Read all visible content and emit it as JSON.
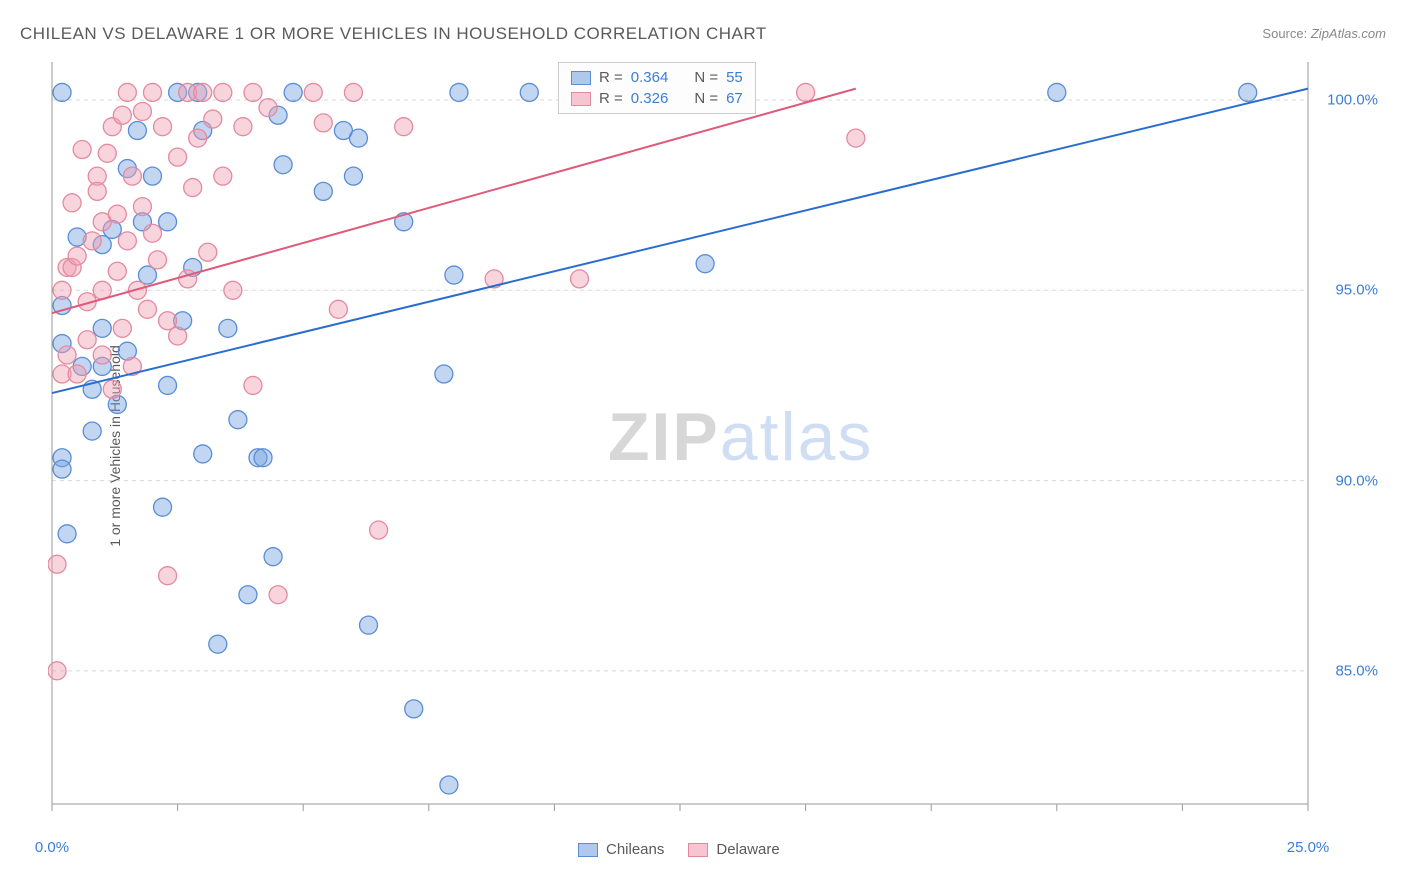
{
  "title": "CHILEAN VS DELAWARE 1 OR MORE VEHICLES IN HOUSEHOLD CORRELATION CHART",
  "source_label": "Source:",
  "source_value": "ZipAtlas.com",
  "y_axis_label": "1 or more Vehicles in Household",
  "watermark": {
    "part1": "ZIP",
    "part2": "atlas"
  },
  "chart": {
    "type": "scatter",
    "background_color": "#ffffff",
    "grid_color": "#d8d8d8",
    "axis_color": "#9a9a9a",
    "tick_color": "#3b7dd8",
    "xlim": [
      0,
      25
    ],
    "ylim": [
      81.5,
      101
    ],
    "x_ticks": [
      0,
      25
    ],
    "y_ticks": [
      85,
      90,
      95,
      100
    ],
    "x_tick_suffix": "%",
    "y_tick_suffix": "%",
    "x_minor_step": 2.5,
    "legend_top": {
      "rows": [
        {
          "swatch_fill": "#b0c8ec",
          "swatch_border": "#5a8dd6",
          "r_label": "R =",
          "r_value": "0.364",
          "n_label": "N =",
          "n_value": "55"
        },
        {
          "swatch_fill": "#f7c5cf",
          "swatch_border": "#e48aa0",
          "r_label": "R =",
          "r_value": "0.326",
          "n_label": "N =",
          "n_value": "67"
        }
      ]
    },
    "legend_bottom": [
      {
        "swatch_fill": "#b0c8ec",
        "swatch_border": "#5a8dd6",
        "label": "Chileans"
      },
      {
        "swatch_fill": "#f7c5cf",
        "swatch_border": "#e48aa0",
        "label": "Delaware"
      }
    ],
    "series": [
      {
        "name": "Chileans",
        "marker_fill": "rgba(120,165,225,0.45)",
        "marker_stroke": "#5a8dd6",
        "marker_r": 9,
        "trend_color": "#2a6dd0",
        "trend_width": 2,
        "trend": {
          "x1": 0,
          "y1": 92.3,
          "x2": 25,
          "y2": 100.3
        },
        "points": [
          [
            0.2,
            100.2
          ],
          [
            0.2,
            94.6
          ],
          [
            0.2,
            93.6
          ],
          [
            0.2,
            90.6
          ],
          [
            0.2,
            90.3
          ],
          [
            0.3,
            88.6
          ],
          [
            0.5,
            96.4
          ],
          [
            0.6,
            93.0
          ],
          [
            0.8,
            92.4
          ],
          [
            0.8,
            91.3
          ],
          [
            1.0,
            96.2
          ],
          [
            1.0,
            94.0
          ],
          [
            1.0,
            93.0
          ],
          [
            1.2,
            96.6
          ],
          [
            1.3,
            92.0
          ],
          [
            1.5,
            98.2
          ],
          [
            1.5,
            93.4
          ],
          [
            1.7,
            99.2
          ],
          [
            1.8,
            96.8
          ],
          [
            1.9,
            95.4
          ],
          [
            2.0,
            98.0
          ],
          [
            2.2,
            89.3
          ],
          [
            2.3,
            96.8
          ],
          [
            2.3,
            92.5
          ],
          [
            2.5,
            100.2
          ],
          [
            2.6,
            94.2
          ],
          [
            2.8,
            95.6
          ],
          [
            2.9,
            100.2
          ],
          [
            3.0,
            90.7
          ],
          [
            3.0,
            99.2
          ],
          [
            3.3,
            85.7
          ],
          [
            3.5,
            94.0
          ],
          [
            3.7,
            91.6
          ],
          [
            3.9,
            87.0
          ],
          [
            4.1,
            90.6
          ],
          [
            4.2,
            90.6
          ],
          [
            4.4,
            88.0
          ],
          [
            4.5,
            99.6
          ],
          [
            4.6,
            98.3
          ],
          [
            4.8,
            100.2
          ],
          [
            5.4,
            97.6
          ],
          [
            5.8,
            99.2
          ],
          [
            6.0,
            98.0
          ],
          [
            6.1,
            99.0
          ],
          [
            6.3,
            86.2
          ],
          [
            7.0,
            96.8
          ],
          [
            7.2,
            84.0
          ],
          [
            7.8,
            92.8
          ],
          [
            7.9,
            82.0
          ],
          [
            8.0,
            95.4
          ],
          [
            8.1,
            100.2
          ],
          [
            9.5,
            100.2
          ],
          [
            13.0,
            95.7
          ],
          [
            20.0,
            100.2
          ],
          [
            23.8,
            100.2
          ]
        ]
      },
      {
        "name": "Delaware",
        "marker_fill": "rgba(240,160,180,0.45)",
        "marker_stroke": "#e48aa0",
        "marker_r": 9,
        "trend_color": "#e05a7a",
        "trend_width": 2,
        "trend": {
          "x1": 0,
          "y1": 94.4,
          "x2": 16,
          "y2": 100.3
        },
        "points": [
          [
            0.1,
            85.0
          ],
          [
            0.1,
            87.8
          ],
          [
            0.2,
            92.8
          ],
          [
            0.2,
            95.0
          ],
          [
            0.3,
            93.3
          ],
          [
            0.3,
            95.6
          ],
          [
            0.4,
            95.6
          ],
          [
            0.4,
            97.3
          ],
          [
            0.5,
            92.8
          ],
          [
            0.5,
            95.9
          ],
          [
            0.6,
            98.7
          ],
          [
            0.7,
            94.7
          ],
          [
            0.7,
            93.7
          ],
          [
            0.8,
            96.3
          ],
          [
            0.9,
            98.0
          ],
          [
            0.9,
            97.6
          ],
          [
            1.0,
            93.3
          ],
          [
            1.0,
            96.8
          ],
          [
            1.0,
            95.0
          ],
          [
            1.1,
            98.6
          ],
          [
            1.2,
            99.3
          ],
          [
            1.2,
            92.4
          ],
          [
            1.3,
            97.0
          ],
          [
            1.3,
            95.5
          ],
          [
            1.4,
            99.6
          ],
          [
            1.4,
            94.0
          ],
          [
            1.5,
            100.2
          ],
          [
            1.5,
            96.3
          ],
          [
            1.6,
            98.0
          ],
          [
            1.6,
            93.0
          ],
          [
            1.7,
            95.0
          ],
          [
            1.8,
            99.7
          ],
          [
            1.8,
            97.2
          ],
          [
            1.9,
            94.5
          ],
          [
            2.0,
            96.5
          ],
          [
            2.0,
            100.2
          ],
          [
            2.1,
            95.8
          ],
          [
            2.2,
            99.3
          ],
          [
            2.3,
            94.2
          ],
          [
            2.3,
            87.5
          ],
          [
            2.5,
            98.5
          ],
          [
            2.5,
            93.8
          ],
          [
            2.7,
            100.2
          ],
          [
            2.7,
            95.3
          ],
          [
            2.8,
            97.7
          ],
          [
            2.9,
            99.0
          ],
          [
            3.0,
            100.2
          ],
          [
            3.1,
            96.0
          ],
          [
            3.2,
            99.5
          ],
          [
            3.4,
            100.2
          ],
          [
            3.4,
            98.0
          ],
          [
            3.6,
            95.0
          ],
          [
            3.8,
            99.3
          ],
          [
            4.0,
            92.5
          ],
          [
            4.0,
            100.2
          ],
          [
            4.3,
            99.8
          ],
          [
            4.5,
            87.0
          ],
          [
            5.2,
            100.2
          ],
          [
            5.4,
            99.4
          ],
          [
            5.7,
            94.5
          ],
          [
            6.0,
            100.2
          ],
          [
            6.5,
            88.7
          ],
          [
            7.0,
            99.3
          ],
          [
            8.8,
            95.3
          ],
          [
            10.5,
            95.3
          ],
          [
            15.0,
            100.2
          ],
          [
            16.0,
            99.0
          ]
        ]
      }
    ]
  }
}
